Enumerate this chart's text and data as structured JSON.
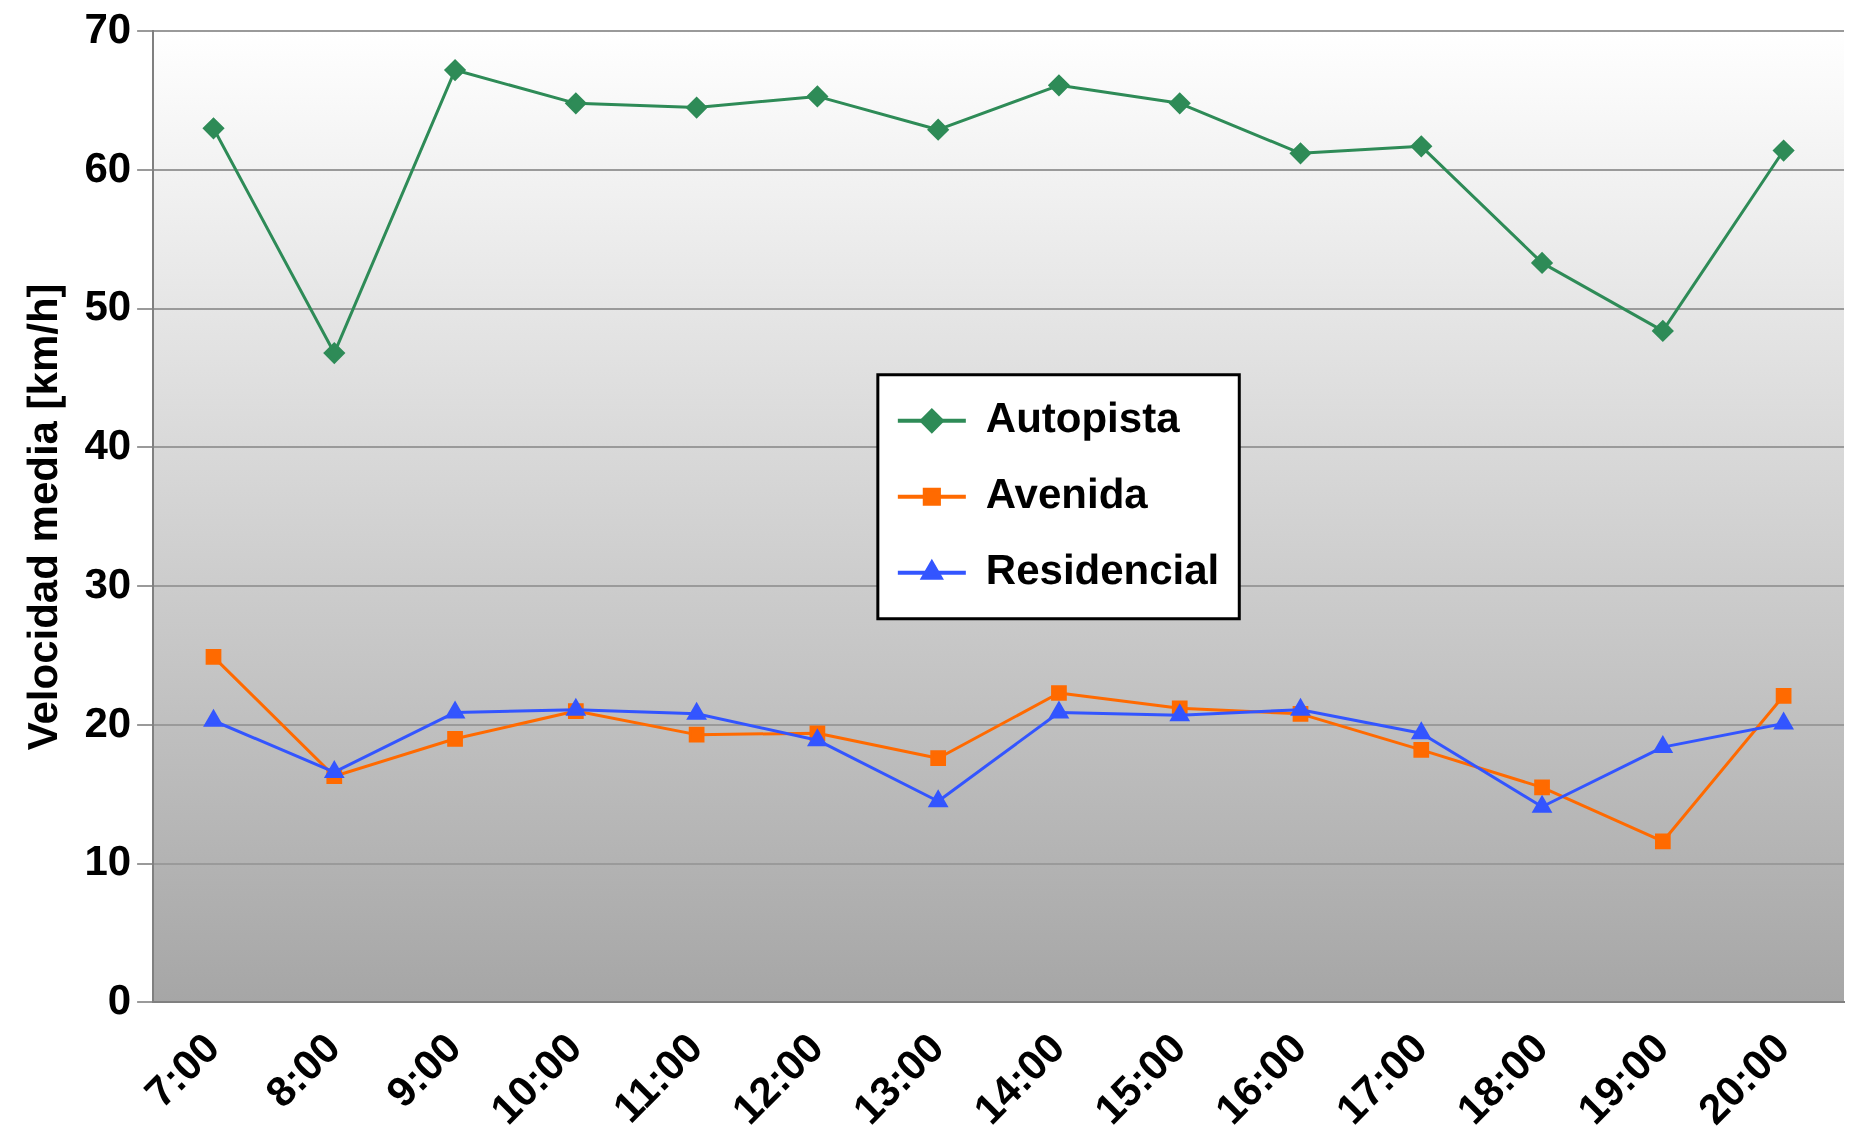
{
  "chart_data": {
    "type": "line",
    "ylabel": "Velocidad media [km/h]",
    "categories": [
      "7:00",
      "8:00",
      "9:00",
      "10:00",
      "11:00",
      "12:00",
      "13:00",
      "14:00",
      "15:00",
      "16:00",
      "17:00",
      "18:00",
      "19:00",
      "20:00"
    ],
    "series": [
      {
        "name": "Autopista",
        "color": "#2e8b57",
        "marker": "diamond",
        "values": [
          63,
          46.8,
          67.2,
          64.8,
          64.5,
          65.3,
          62.9,
          66.1,
          64.8,
          61.2,
          61.7,
          53.3,
          48.4,
          61.4
        ]
      },
      {
        "name": "Avenida",
        "color": "#ff6a00",
        "marker": "square",
        "values": [
          24.9,
          16.3,
          19.0,
          21.0,
          19.3,
          19.4,
          17.6,
          22.3,
          21.2,
          20.8,
          18.2,
          15.5,
          11.6,
          22.1
        ]
      },
      {
        "name": "Residencial",
        "color": "#3355ff",
        "marker": "triangle",
        "values": [
          20.3,
          16.6,
          20.9,
          21.1,
          20.8,
          18.9,
          14.5,
          20.9,
          20.7,
          21.1,
          19.4,
          14.1,
          18.4,
          20.1
        ]
      }
    ],
    "ylim": [
      0,
      70
    ],
    "yticks": [
      0,
      10,
      20,
      30,
      40,
      50,
      60,
      70
    ],
    "grid": "y",
    "legend": "center"
  }
}
